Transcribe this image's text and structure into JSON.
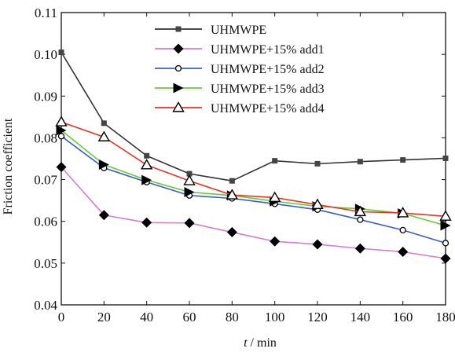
{
  "chart_data": {
    "type": "line",
    "xlabel_var": "t",
    "xlabel_unit": " / min",
    "ylabel": "Friction coefficient",
    "x": [
      0,
      20,
      40,
      60,
      80,
      100,
      120,
      140,
      160,
      180
    ],
    "xlim": [
      0,
      180
    ],
    "ylim": [
      0.04,
      0.11
    ],
    "xticks": [
      "0",
      "20",
      "40",
      "60",
      "80",
      "100",
      "120",
      "140",
      "160",
      "180"
    ],
    "yticks": [
      "0.04",
      "0.05",
      "0.06",
      "0.07",
      "0.08",
      "0.09",
      "0.10",
      "0.11"
    ],
    "grid": false,
    "legend_position": "top-right",
    "series": [
      {
        "name": "UHMWPE",
        "color": "#333333",
        "marker": "square",
        "values": [
          0.1005,
          0.0835,
          0.0757,
          0.0714,
          0.0697,
          0.0745,
          0.0738,
          0.0743,
          0.0747,
          0.0751
        ]
      },
      {
        "name": "UHMWPE+15% add1",
        "color": "#d77ad4",
        "marker": "diamond",
        "values": [
          0.073,
          0.0615,
          0.0597,
          0.0596,
          0.0574,
          0.0552,
          0.0545,
          0.0535,
          0.0527,
          0.0511
        ]
      },
      {
        "name": "UHMWPE+15% add2",
        "color": "#3a5fcd",
        "marker": "circle-open",
        "values": [
          0.0804,
          0.0728,
          0.0694,
          0.0662,
          0.0655,
          0.0642,
          0.0628,
          0.0604,
          0.0579,
          0.0548
        ]
      },
      {
        "name": "UHMWPE+15% add3",
        "color": "#66cc33",
        "marker": "triangle-right",
        "values": [
          0.0818,
          0.0736,
          0.0699,
          0.067,
          0.0662,
          0.0648,
          0.0636,
          0.063,
          0.0619,
          0.059
        ]
      },
      {
        "name": "UHMWPE+15% add4",
        "color": "#ee3322",
        "marker": "triangle-open",
        "values": [
          0.0838,
          0.0802,
          0.0735,
          0.0697,
          0.0663,
          0.0657,
          0.064,
          0.0623,
          0.062,
          0.0612
        ]
      }
    ]
  }
}
